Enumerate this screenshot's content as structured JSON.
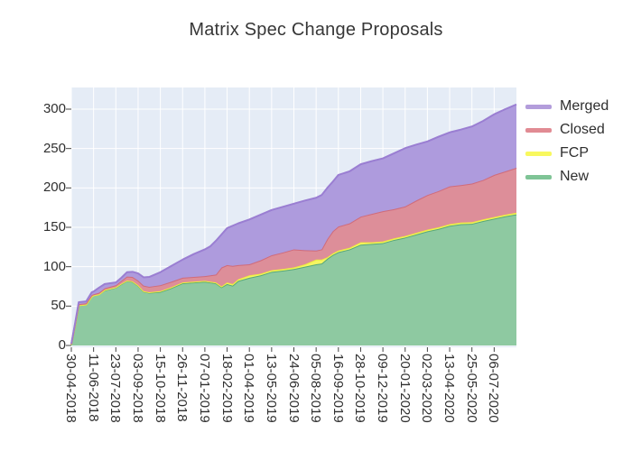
{
  "title": "Matrix Spec Change Proposals",
  "plot": {
    "bg_color": "#e5ecf6",
    "grid_color": "#ffffff",
    "tick_color": "#444444"
  },
  "legend": {
    "items": [
      {
        "label": "Merged",
        "marker_color": "#b39ddb"
      },
      {
        "label": "Closed",
        "marker_color": "#e18b93"
      },
      {
        "label": "FCP",
        "marker_color": "#f8f85e"
      },
      {
        "label": "New",
        "marker_color": "#7fc496"
      }
    ]
  },
  "axes": {
    "y_ticks": [
      0,
      50,
      100,
      150,
      200,
      250,
      300
    ],
    "x_ticks": [
      "30-04-2018",
      "11-06-2018",
      "23-07-2018",
      "03-09-2018",
      "15-10-2018",
      "26-11-2018",
      "07-01-2019",
      "18-02-2019",
      "01-04-2019",
      "13-05-2019",
      "24-06-2019",
      "05-08-2019",
      "16-09-2019",
      "28-10-2019",
      "09-12-2019",
      "20-01-2020",
      "02-03-2020",
      "13-04-2020",
      "25-05-2020",
      "06-07-2020"
    ]
  },
  "chart_data": {
    "type": "area",
    "stacked": true,
    "title": "Matrix Spec Change Proposals",
    "xlabel": "",
    "ylabel": "",
    "grid": true,
    "legend_position": "right",
    "x_tick_labels": [
      "30-04-2018",
      "11-06-2018",
      "23-07-2018",
      "03-09-2018",
      "15-10-2018",
      "26-11-2018",
      "07-01-2019",
      "18-02-2019",
      "01-04-2019",
      "13-05-2019",
      "24-06-2019",
      "05-08-2019",
      "16-09-2019",
      "28-10-2019",
      "09-12-2019",
      "20-01-2020",
      "02-03-2020",
      "13-04-2020",
      "25-05-2020",
      "06-07-2020"
    ],
    "x_tick_interval_weeks": 6,
    "x_unit": "weeks since 30-04-2018",
    "x_max_weeks": 120,
    "ylim": [
      0,
      325
    ],
    "stack_order_bottom_to_top": [
      "New",
      "FCP",
      "Closed",
      "Merged"
    ],
    "weeks": [
      0,
      1,
      2,
      4,
      5.5,
      6,
      7.5,
      9,
      12,
      13.5,
      15,
      16.5,
      18,
      19.5,
      21,
      24,
      27,
      30,
      33,
      36,
      37.5,
      39,
      40.5,
      42,
      43.5,
      45,
      48,
      51,
      54,
      57,
      60,
      63,
      66,
      67.5,
      69,
      70.5,
      72,
      75,
      78,
      81,
      84,
      87,
      90,
      93,
      96,
      99,
      102,
      105,
      108,
      111,
      114,
      117,
      120
    ],
    "series": [
      {
        "name": "New",
        "line_color": "#58a878",
        "fill_color": "#8ec9a1",
        "values": [
          1,
          25,
          51,
          52,
          62,
          63.5,
          65,
          70,
          73.5,
          78,
          82,
          81,
          76,
          68.5,
          67,
          68,
          73,
          79,
          80,
          81,
          80,
          79,
          74,
          78,
          76,
          82,
          86,
          89,
          93.5,
          95,
          97,
          100,
          103,
          104,
          110,
          115,
          118.5,
          122,
          128,
          129,
          130,
          134,
          137,
          141,
          145,
          148,
          152,
          154,
          154.5,
          158,
          161,
          164,
          166.5
        ]
      },
      {
        "name": "FCP",
        "line_color": "#eded3d",
        "fill_color": "#f5f562",
        "values": [
          0,
          0,
          0,
          0,
          0,
          0,
          0,
          0.5,
          0.5,
          0.5,
          0.5,
          0.5,
          0.5,
          0.5,
          0.5,
          1,
          1,
          1,
          1,
          1,
          1,
          1,
          1,
          2,
          2,
          2,
          3,
          2,
          2,
          2,
          2,
          3,
          6,
          5,
          2,
          2,
          2,
          2,
          3,
          2,
          2,
          2,
          2,
          2,
          2,
          2,
          2,
          2,
          2,
          2,
          2,
          2,
          2
        ]
      },
      {
        "name": "Closed",
        "line_color": "#d06b7a",
        "fill_color": "#dd8e99",
        "values": [
          0.5,
          1.5,
          1.5,
          1.5,
          2,
          1.5,
          2,
          2,
          2.5,
          3.5,
          5,
          5.5,
          6,
          7,
          7,
          7.5,
          7,
          6,
          6,
          6,
          8,
          10,
          24,
          22,
          23,
          18,
          14,
          17,
          19,
          21,
          23,
          18,
          11.5,
          13,
          23,
          28,
          30.5,
          31,
          32.5,
          36,
          38.5,
          37,
          37.5,
          41,
          44,
          46,
          48,
          47.5,
          49,
          50,
          53.5,
          55,
          57
        ]
      },
      {
        "name": "Merged",
        "line_color": "#9a7ed2",
        "fill_color": "#ae9bdd",
        "values": [
          0.5,
          1.5,
          2.5,
          2.5,
          3.5,
          3.5,
          6.5,
          5.5,
          3.5,
          4,
          5.5,
          6.5,
          9,
          10.5,
          12.5,
          16.5,
          20,
          23,
          29,
          34,
          37,
          43,
          42,
          47,
          51,
          53,
          57,
          58,
          57.5,
          58,
          58,
          63,
          67,
          69,
          65,
          63,
          65.5,
          66,
          66.5,
          67,
          67,
          71,
          74,
          71,
          68,
          69,
          68.5,
          70.5,
          72.5,
          75,
          77,
          79,
          80.5
        ]
      }
    ]
  }
}
